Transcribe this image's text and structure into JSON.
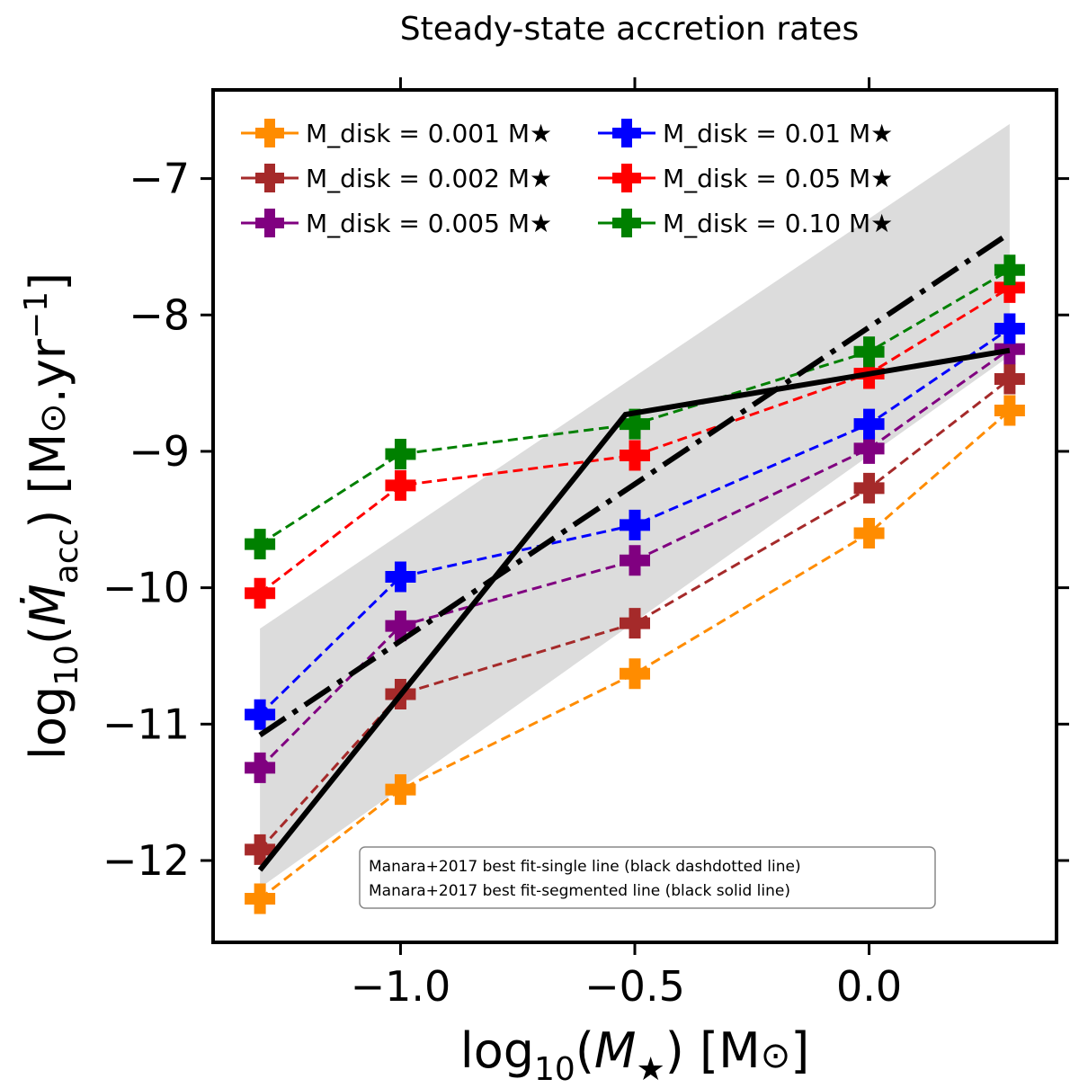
{
  "chart_data": {
    "type": "line",
    "title": "Steady-state accretion rates",
    "xlabel": "log10(M★) [M⊙]",
    "ylabel": "log10(Ṁacc) [M⊙.yr−1]",
    "xlim": [
      -1.4,
      0.4
    ],
    "ylim": [
      -12.6,
      -6.35
    ],
    "xticks": [
      -1.0,
      -0.5,
      0.0
    ],
    "xtick_labels": [
      "−1.0",
      "−0.5",
      "0.0"
    ],
    "yticks": [
      -12,
      -11,
      -10,
      -9,
      -8,
      -7
    ],
    "ytick_labels": [
      "−12",
      "−11",
      "−10",
      "−9",
      "−8",
      "−7"
    ],
    "x": [
      -1.3,
      -1.0,
      -0.5,
      0.0,
      0.3
    ],
    "series": [
      {
        "name": "M_disk = 0.001 M★",
        "color": "#ff8c00",
        "values": [
          -12.28,
          -11.48,
          -10.63,
          -9.6,
          -8.7
        ]
      },
      {
        "name": "M_disk = 0.002 M★",
        "color": "#a52a2a",
        "values": [
          -11.92,
          -10.78,
          -10.26,
          -9.27,
          -8.47
        ]
      },
      {
        "name": "M_disk = 0.005 M★",
        "color": "#800080",
        "values": [
          -11.32,
          -10.28,
          -9.8,
          -8.98,
          -8.25
        ]
      },
      {
        "name": "M_disk = 0.01 M★",
        "color": "#0000ff",
        "values": [
          -10.93,
          -9.92,
          -9.54,
          -8.8,
          -8.1
        ]
      },
      {
        "name": "M_disk = 0.05 M★",
        "color": "#ff0000",
        "values": [
          -10.04,
          -9.25,
          -9.03,
          -8.43,
          -7.8
        ]
      },
      {
        "name": "M_disk = 0.10 M★",
        "color": "#008000",
        "values": [
          -9.68,
          -9.02,
          -8.8,
          -8.27,
          -7.67
        ]
      }
    ],
    "fit_single_line": {
      "x": [
        -1.3,
        0.3
      ],
      "y": [
        -11.08,
        -7.4
      ],
      "style": "dashdot",
      "color": "#000000"
    },
    "fit_segmented_line": {
      "x": [
        -1.3,
        -0.52,
        0.3
      ],
      "y": [
        -12.07,
        -8.73,
        -8.26
      ],
      "style": "solid",
      "color": "#000000"
    },
    "shaded_band": {
      "x": [
        -1.3,
        0.3,
        0.3,
        -1.3
      ],
      "y": [
        -10.3,
        -6.6,
        -8.3,
        -12.2
      ],
      "color": "#dcdcdc"
    },
    "legend_position": "top-left",
    "legend_labels": [
      "M_disk = 0.001 M★",
      "M_disk = 0.002 M★",
      "M_disk = 0.005 M★",
      "M_disk = 0.01 M★",
      "M_disk = 0.05 M★",
      "M_disk = 0.10 M★"
    ],
    "annotation_lines": [
      "Manara+2017 best fit-single line (black dashdotted line)",
      "Manara+2017 best fit-segmented line (black solid line)"
    ]
  }
}
